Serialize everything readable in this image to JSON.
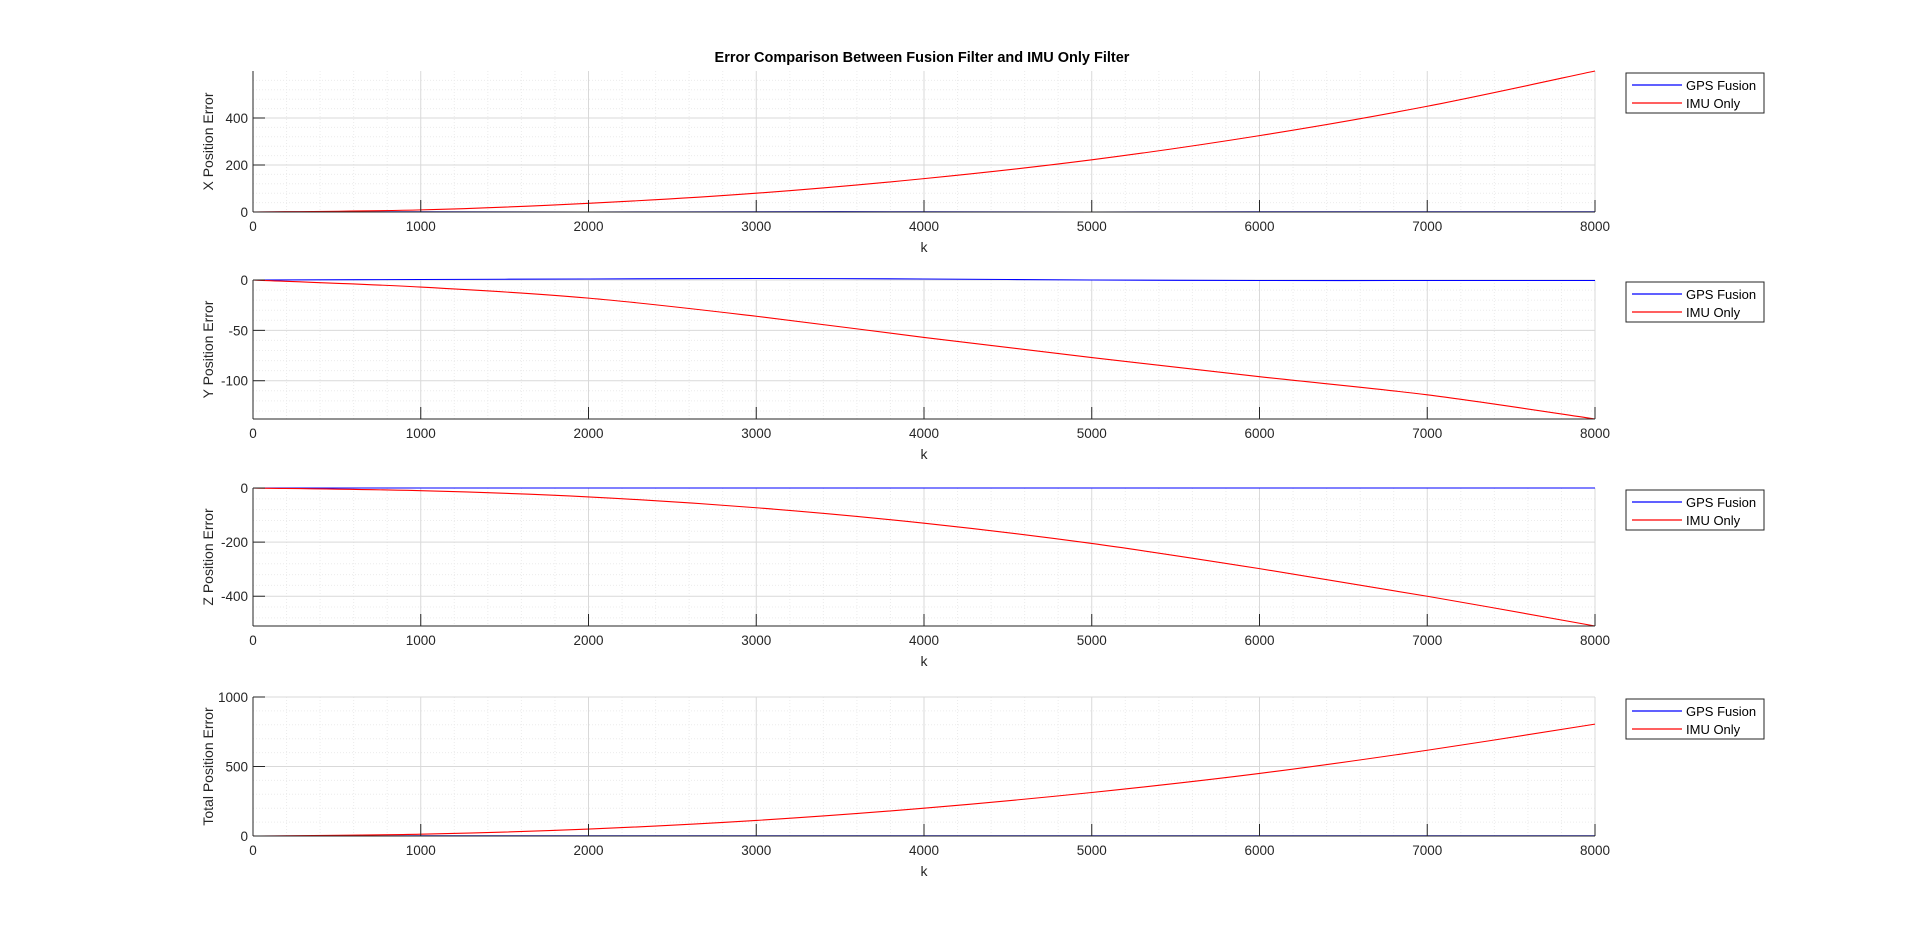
{
  "figure": {
    "title": "Error Comparison Between Fusion Filter and IMU Only Filter"
  },
  "colors": {
    "gps_fusion": "#0000ff",
    "imu_only": "#ff0000",
    "axis": "#262626",
    "grid_major": "#d9d9d9",
    "grid_minor": "#ececec"
  },
  "chart_data": [
    {
      "type": "line",
      "title": "Error Comparison Between Fusion Filter and IMU Only Filter",
      "xlabel": "k",
      "ylabel": "X Position Error",
      "xlim": [
        0,
        8000
      ],
      "ylim": [
        0,
        600
      ],
      "xticks": [
        0,
        1000,
        2000,
        3000,
        4000,
        5000,
        6000,
        7000,
        8000
      ],
      "yticks": [
        0,
        200,
        400
      ],
      "grid": true,
      "minor_grid": true,
      "legend_position": "outside-right",
      "x": [
        0,
        1000,
        2000,
        3000,
        4000,
        5000,
        6000,
        7000,
        8000
      ],
      "series": [
        {
          "name": "GPS Fusion",
          "color": "#0000ff",
          "values": [
            0,
            1,
            0,
            1,
            1,
            0,
            1,
            1,
            1
          ]
        },
        {
          "name": "IMU Only",
          "color": "#ff0000",
          "values": [
            0,
            9,
            37,
            80,
            142,
            222,
            325,
            450,
            600
          ]
        }
      ]
    },
    {
      "type": "line",
      "title": "",
      "xlabel": "k",
      "ylabel": "Y Position Error",
      "xlim": [
        0,
        8000
      ],
      "ylim": [
        -138,
        0
      ],
      "xticks": [
        0,
        1000,
        2000,
        3000,
        4000,
        5000,
        6000,
        7000,
        8000
      ],
      "yticks": [
        -100,
        -50,
        0
      ],
      "grid": true,
      "minor_grid": true,
      "legend_position": "outside-right",
      "x": [
        0,
        1000,
        2000,
        3000,
        4000,
        5000,
        6000,
        7000,
        8000
      ],
      "series": [
        {
          "name": "GPS Fusion",
          "color": "#0000ff",
          "values": [
            0,
            0.5,
            1,
            1.5,
            1,
            0,
            -0.5,
            -0.5,
            -0.5
          ]
        },
        {
          "name": "IMU Only",
          "color": "#ff0000",
          "values": [
            0,
            -7,
            -18,
            -36,
            -57,
            -77,
            -96,
            -114,
            -138
          ]
        }
      ]
    },
    {
      "type": "line",
      "title": "",
      "xlabel": "k",
      "ylabel": "Z Position Error",
      "xlim": [
        0,
        8000
      ],
      "ylim": [
        -510,
        0
      ],
      "xticks": [
        0,
        1000,
        2000,
        3000,
        4000,
        5000,
        6000,
        7000,
        8000
      ],
      "yticks": [
        -400,
        -200,
        0
      ],
      "grid": true,
      "minor_grid": true,
      "legend_position": "outside-right",
      "x": [
        0,
        1000,
        2000,
        3000,
        4000,
        5000,
        6000,
        7000,
        8000
      ],
      "series": [
        {
          "name": "GPS Fusion",
          "color": "#0000ff",
          "values": [
            0,
            0,
            0,
            0,
            0,
            0,
            0,
            0,
            0
          ]
        },
        {
          "name": "IMU Only",
          "color": "#ff0000",
          "values": [
            0,
            -10,
            -33,
            -73,
            -130,
            -205,
            -298,
            -400,
            -510
          ]
        }
      ]
    },
    {
      "type": "line",
      "title": "",
      "xlabel": "k",
      "ylabel": "Total Position Error",
      "xlim": [
        0,
        8000
      ],
      "ylim": [
        0,
        1000
      ],
      "xticks": [
        0,
        1000,
        2000,
        3000,
        4000,
        5000,
        6000,
        7000,
        8000
      ],
      "yticks": [
        0,
        500,
        1000
      ],
      "grid": true,
      "minor_grid": true,
      "legend_position": "outside-right",
      "x": [
        0,
        1000,
        2000,
        3000,
        4000,
        5000,
        6000,
        7000,
        8000
      ],
      "series": [
        {
          "name": "GPS Fusion",
          "color": "#0000ff",
          "values": [
            0,
            1,
            1,
            1,
            1,
            1,
            1,
            1,
            1
          ]
        },
        {
          "name": "IMU Only",
          "color": "#ff0000",
          "values": [
            0,
            13,
            50,
            112,
            200,
            313,
            450,
            617,
            805
          ]
        }
      ]
    }
  ]
}
